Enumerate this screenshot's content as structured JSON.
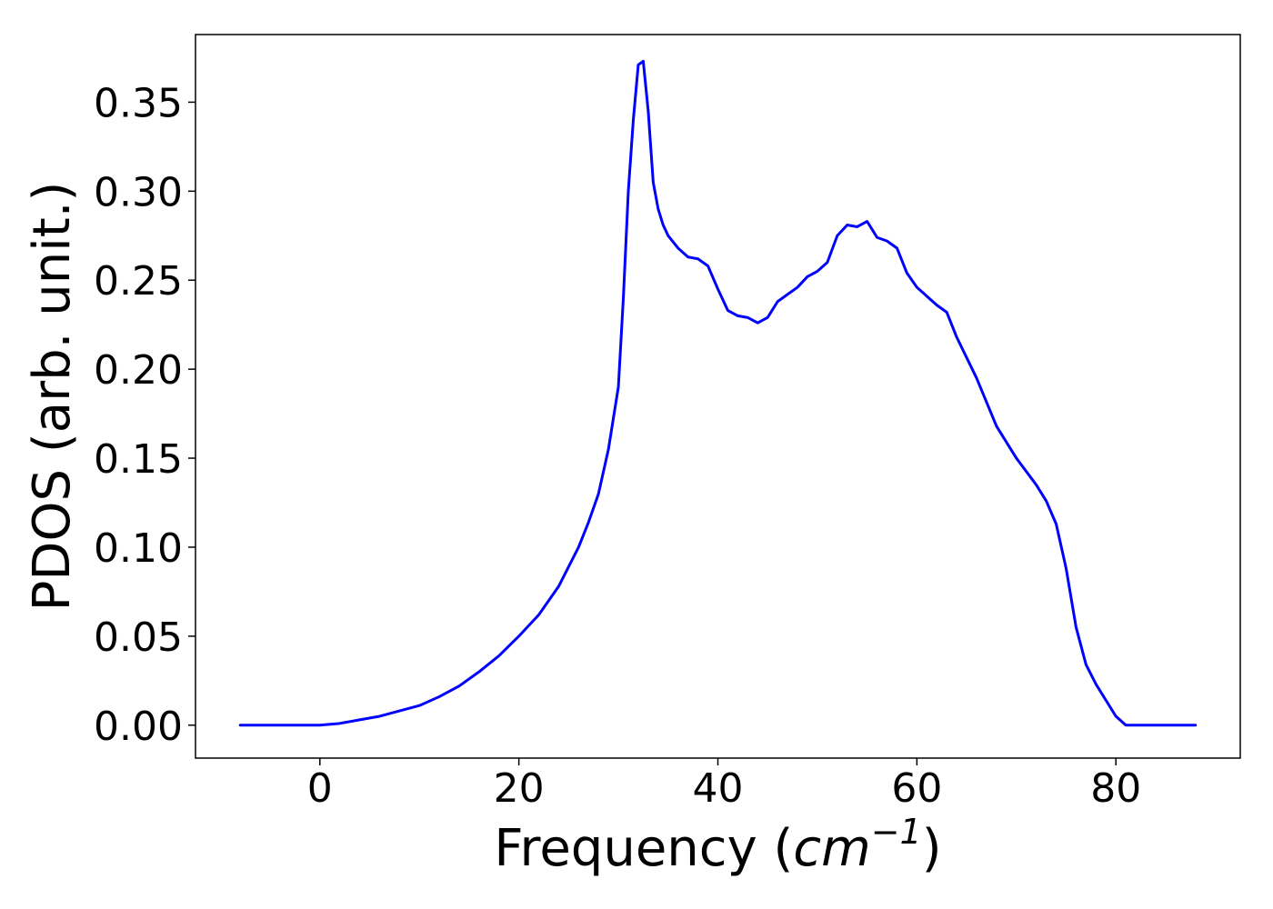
{
  "chart_data": {
    "type": "line",
    "title": "",
    "xlabel": {
      "prefix": "Frequency (",
      "math": "cm",
      "sup": "−1",
      "suffix": ")"
    },
    "ylabel": "PDOS (arb. unit.)",
    "xlim": [
      -12.5,
      92.5
    ],
    "ylim": [
      -0.0185,
      0.388
    ],
    "xticks": [
      0,
      20,
      40,
      60,
      80
    ],
    "xtick_labels": [
      "0",
      "20",
      "40",
      "60",
      "80"
    ],
    "yticks": [
      0.0,
      0.05,
      0.1,
      0.15,
      0.2,
      0.25,
      0.3,
      0.35
    ],
    "ytick_labels": [
      "0.00",
      "0.05",
      "0.10",
      "0.15",
      "0.20",
      "0.25",
      "0.30",
      "0.35"
    ],
    "grid": false,
    "legend": "none",
    "series": [
      {
        "color": "#0000ff",
        "x": [
          -8,
          0,
          2,
          4,
          6,
          8,
          10,
          12,
          14,
          16,
          18,
          20,
          22,
          24,
          26,
          27,
          28,
          29,
          30,
          30.5,
          31,
          31.5,
          32,
          32.5,
          33,
          33.5,
          34,
          34.5,
          35,
          36,
          37,
          38,
          39,
          40,
          41,
          42,
          43,
          44,
          45,
          46,
          47,
          48,
          49,
          50,
          51,
          52,
          53,
          54,
          55,
          56,
          57,
          58,
          59,
          60,
          61,
          62,
          63,
          64,
          66,
          68,
          70,
          72,
          73,
          74,
          75,
          76,
          77,
          78,
          79,
          80,
          81,
          82,
          84,
          86,
          88
        ],
        "y": [
          0.0,
          0.0,
          0.001,
          0.003,
          0.005,
          0.008,
          0.011,
          0.016,
          0.022,
          0.03,
          0.039,
          0.05,
          0.062,
          0.078,
          0.1,
          0.114,
          0.13,
          0.155,
          0.19,
          0.24,
          0.3,
          0.34,
          0.371,
          0.373,
          0.345,
          0.305,
          0.29,
          0.281,
          0.275,
          0.268,
          0.263,
          0.262,
          0.258,
          0.245,
          0.233,
          0.23,
          0.229,
          0.226,
          0.229,
          0.238,
          0.242,
          0.246,
          0.252,
          0.255,
          0.26,
          0.275,
          0.281,
          0.28,
          0.283,
          0.274,
          0.272,
          0.268,
          0.254,
          0.246,
          0.241,
          0.236,
          0.232,
          0.218,
          0.195,
          0.168,
          0.15,
          0.135,
          0.126,
          0.113,
          0.088,
          0.055,
          0.034,
          0.023,
          0.014,
          0.005,
          0.0,
          0.0,
          0.0,
          0.0,
          0.0
        ]
      }
    ]
  }
}
